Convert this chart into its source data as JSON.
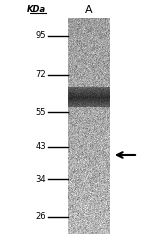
{
  "lane_label": "A",
  "kda_label": "KDa",
  "markers": [
    95,
    72,
    55,
    43,
    34,
    26
  ],
  "band_kda": 40.5,
  "fig_width": 1.5,
  "fig_height": 2.44,
  "dpi": 100,
  "bg_color": "#ffffff"
}
